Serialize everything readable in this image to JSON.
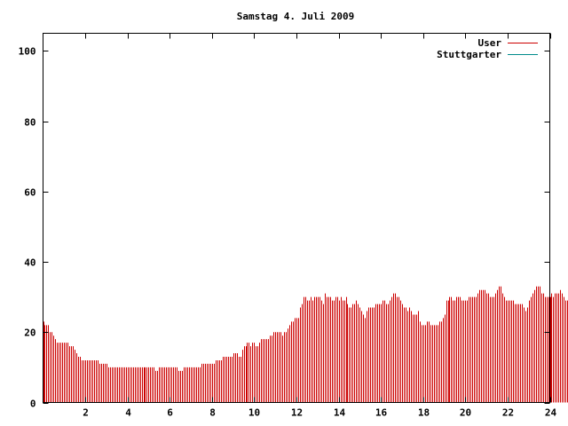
{
  "chart_data": {
    "type": "bar",
    "title": "Samstag 4. Juli 2009",
    "xlabel": "",
    "ylabel": "",
    "xlim": [
      0,
      24
    ],
    "ylim": [
      0,
      105
    ],
    "x_ticks": [
      2,
      4,
      6,
      8,
      10,
      12,
      14,
      16,
      18,
      20,
      22,
      24
    ],
    "y_ticks": [
      0,
      20,
      40,
      60,
      80,
      100
    ],
    "grid": false,
    "legend_position": "top-right",
    "bar_interval_minutes": 5,
    "series": [
      {
        "name": "User",
        "color": "#cc0000",
        "values": [
          23,
          22,
          22,
          22,
          20,
          20,
          19,
          18,
          17,
          17,
          17,
          17,
          17,
          17,
          17,
          16,
          16,
          16,
          15,
          14,
          13,
          13,
          12,
          12,
          12,
          12,
          12,
          12,
          12,
          12,
          12,
          12,
          11,
          11,
          11,
          11,
          11,
          10,
          10,
          10,
          10,
          10,
          10,
          10,
          10,
          10,
          10,
          10,
          10,
          10,
          10,
          10,
          10,
          10,
          10,
          10,
          10,
          10,
          10,
          10,
          10,
          10,
          10,
          10,
          9,
          9,
          10,
          10,
          10,
          10,
          10,
          10,
          10,
          10,
          10,
          10,
          10,
          9,
          9,
          9,
          10,
          10,
          10,
          10,
          10,
          10,
          10,
          10,
          10,
          10,
          11,
          11,
          11,
          11,
          11,
          11,
          11,
          11,
          12,
          12,
          12,
          12,
          13,
          13,
          13,
          13,
          13,
          13,
          14,
          14,
          14,
          13,
          13,
          15,
          16,
          16,
          17,
          17,
          16,
          17,
          17,
          16,
          16,
          17,
          18,
          18,
          18,
          18,
          18,
          19,
          19,
          20,
          20,
          20,
          20,
          20,
          19,
          20,
          20,
          21,
          22,
          23,
          23,
          24,
          24,
          24,
          27,
          28,
          30,
          30,
          29,
          29,
          30,
          29,
          30,
          30,
          30,
          30,
          29,
          28,
          31,
          30,
          30,
          30,
          29,
          29,
          30,
          30,
          29,
          30,
          29,
          29,
          30,
          28,
          27,
          27,
          28,
          28,
          29,
          28,
          27,
          26,
          25,
          24,
          26,
          27,
          27,
          27,
          27,
          28,
          28,
          28,
          28,
          29,
          29,
          28,
          28,
          29,
          30,
          31,
          31,
          30,
          30,
          29,
          28,
          27,
          27,
          26,
          27,
          26,
          25,
          25,
          25,
          26,
          23,
          22,
          22,
          22,
          23,
          23,
          22,
          22,
          22,
          22,
          22,
          23,
          23,
          24,
          25,
          29,
          29,
          30,
          30,
          29,
          29,
          30,
          30,
          30,
          29,
          29,
          29,
          29,
          30,
          30,
          30,
          30,
          30,
          31,
          32,
          32,
          32,
          32,
          31,
          31,
          30,
          30,
          30,
          31,
          32,
          33,
          33,
          31,
          30,
          29,
          29,
          29,
          29,
          29,
          28,
          28,
          28,
          28,
          28,
          27,
          26,
          27,
          29,
          30,
          31,
          32,
          33,
          33,
          33,
          31,
          31,
          30,
          30,
          30,
          30,
          31,
          30,
          31,
          31,
          31,
          32,
          31,
          30,
          29,
          29,
          29,
          28,
          29,
          30,
          31,
          31,
          30,
          29
        ]
      },
      {
        "name": "Stuttgarter",
        "color": "#008b8b",
        "values": []
      }
    ]
  }
}
